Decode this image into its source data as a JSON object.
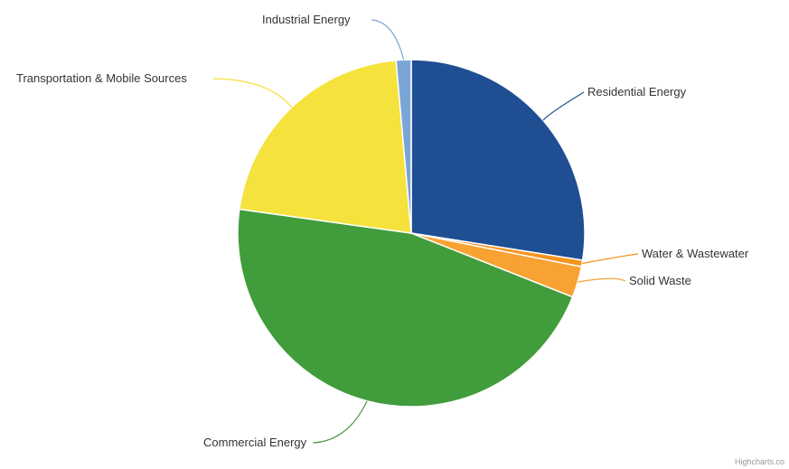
{
  "chart_data": {
    "type": "pie",
    "title": "",
    "slices": [
      {
        "name": "Residential Energy",
        "value": 27.5,
        "color": "#1f4e93"
      },
      {
        "name": "Water & Wastewater",
        "value": 0.6,
        "color": "#f7941d"
      },
      {
        "name": "Solid Waste",
        "value": 2.9,
        "color": "#f7a233"
      },
      {
        "name": "Commercial Energy",
        "value": 46.2,
        "color": "#419c3b"
      },
      {
        "name": "Transportation & Mobile Sources",
        "value": 21.4,
        "color": "#f5e23c"
      },
      {
        "name": "Industrial Energy",
        "value": 1.4,
        "color": "#7aa6d6"
      }
    ],
    "start_angle_deg": 0,
    "data_labels": "outside-with-connectors",
    "legend": "none"
  },
  "credit": "Highcharts.co"
}
